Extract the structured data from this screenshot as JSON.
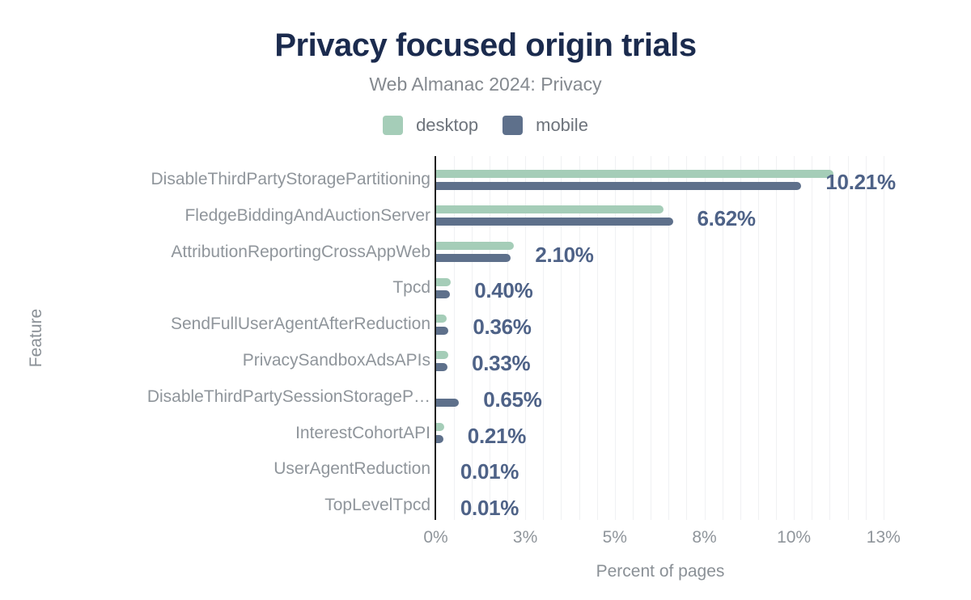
{
  "header": {
    "title": "Privacy focused origin trials",
    "subtitle": "Web Almanac 2024: Privacy"
  },
  "legend": [
    {
      "label": "desktop",
      "color": "#a5cdb8"
    },
    {
      "label": "mobile",
      "color": "#5e708b"
    }
  ],
  "axes": {
    "xlabel": "Percent of pages",
    "ylabel": "Feature"
  },
  "colors": {
    "title": "#1b2b4e",
    "subtitle": "#84898f",
    "desktop_bar": "#a5cdb8",
    "mobile_bar": "#5e708b",
    "value_label": "#4e6287",
    "axis_text": "#8f959b",
    "grid_line": "#f0f1f3",
    "axis_line": "#212121",
    "background": "#ffffff"
  },
  "chart_data": {
    "type": "bar",
    "orientation": "horizontal",
    "title": "Privacy focused origin trials",
    "subtitle": "Web Almanac 2024: Privacy",
    "xlabel": "Percent of pages",
    "ylabel": "Feature",
    "xlim": [
      0,
      12.5
    ],
    "grid": "vertical minor gridlines every 0.5%",
    "legend_position": "top",
    "x_ticks": {
      "values": [
        0,
        2.5,
        5,
        7.5,
        10,
        12.5
      ],
      "labels": [
        "0%",
        "3%",
        "5%",
        "8%",
        "10%",
        "13%"
      ]
    },
    "categories": [
      "DisableThirdPartyStoragePartitioning",
      "FledgeBiddingAndAuctionServer",
      "AttributionReportingCrossAppWeb",
      "Tpcd",
      "SendFullUserAgentAfterReduction",
      "PrivacySandboxAdsAPIs",
      "DisableThirdPartySessionStorageP…",
      "InterestCohortAPI",
      "UserAgentReduction",
      "TopLevelTpcd"
    ],
    "series": [
      {
        "name": "desktop",
        "color": "#a5cdb8",
        "values": [
          11.1,
          6.35,
          2.19,
          0.42,
          0.3,
          0.35,
          0.0,
          0.23,
          0.01,
          0.01
        ]
      },
      {
        "name": "mobile",
        "color": "#5e708b",
        "values": [
          10.21,
          6.62,
          2.1,
          0.4,
          0.36,
          0.33,
          0.65,
          0.21,
          0.01,
          0.01
        ]
      }
    ],
    "value_labels": {
      "labeled_series": "mobile",
      "texts": [
        "10.21%",
        "6.62%",
        "2.10%",
        "0.40%",
        "0.36%",
        "0.33%",
        "0.65%",
        "0.21%",
        "0.01%",
        "0.01%"
      ]
    }
  }
}
